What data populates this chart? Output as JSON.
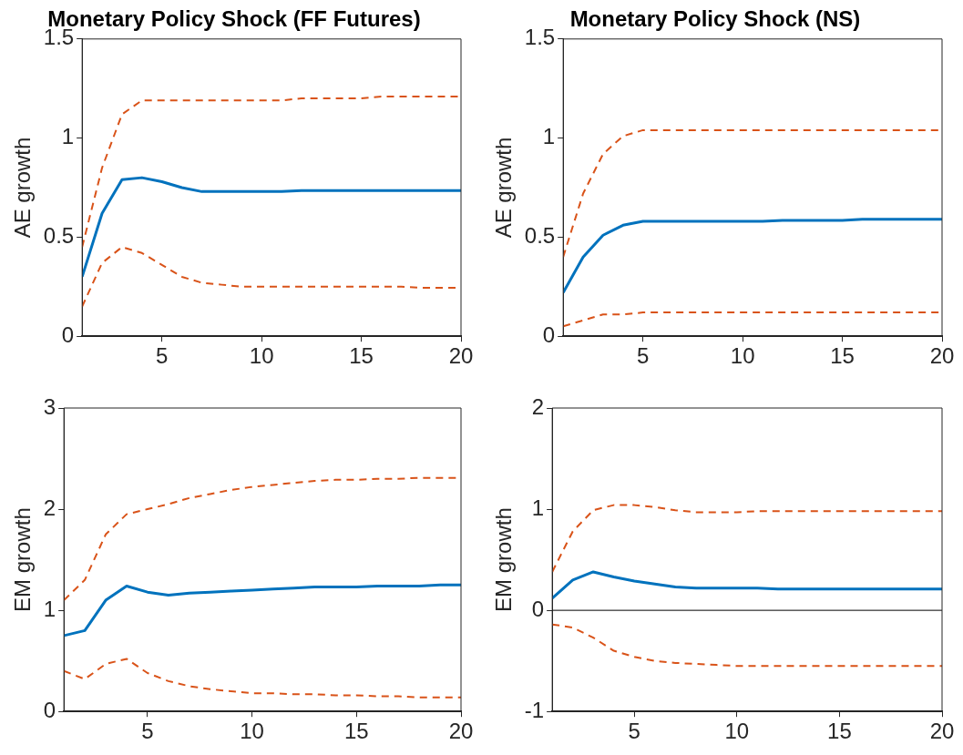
{
  "chart_data": [
    {
      "type": "line",
      "title": "Monetary Policy Shock (FF Futures)",
      "ylabel": "AE growth",
      "x": [
        1,
        2,
        3,
        4,
        5,
        6,
        7,
        8,
        9,
        10,
        11,
        12,
        13,
        14,
        15,
        16,
        17,
        18,
        19,
        20
      ],
      "xlim": [
        1,
        20
      ],
      "xticks": [
        5,
        10,
        15,
        20
      ],
      "ylim": [
        0,
        1.5
      ],
      "yticks": [
        0,
        0.5,
        1,
        1.5
      ],
      "grid": false,
      "legend": false,
      "series": [
        {
          "color": "#d95319",
          "line_style": "dashed",
          "values": [
            0.45,
            0.85,
            1.12,
            1.19,
            1.19,
            1.19,
            1.19,
            1.19,
            1.19,
            1.19,
            1.19,
            1.2,
            1.2,
            1.2,
            1.2,
            1.21,
            1.21,
            1.21,
            1.21,
            1.21
          ]
        },
        {
          "color": "#0072bd",
          "line_style": "solid",
          "values": [
            0.3,
            0.62,
            0.79,
            0.8,
            0.78,
            0.75,
            0.73,
            0.73,
            0.73,
            0.73,
            0.73,
            0.735,
            0.735,
            0.735,
            0.735,
            0.735,
            0.735,
            0.735,
            0.735,
            0.735
          ]
        },
        {
          "color": "#d95319",
          "line_style": "dashed",
          "values": [
            0.15,
            0.37,
            0.45,
            0.42,
            0.36,
            0.3,
            0.27,
            0.26,
            0.25,
            0.25,
            0.25,
            0.25,
            0.25,
            0.25,
            0.25,
            0.25,
            0.25,
            0.245,
            0.245,
            0.245
          ]
        }
      ]
    },
    {
      "type": "line",
      "title": "Monetary Policy Shock (NS)",
      "ylabel": "AE growth",
      "x": [
        1,
        2,
        3,
        4,
        5,
        6,
        7,
        8,
        9,
        10,
        11,
        12,
        13,
        14,
        15,
        16,
        17,
        18,
        19,
        20
      ],
      "xlim": [
        1,
        20
      ],
      "xticks": [
        5,
        10,
        15,
        20
      ],
      "ylim": [
        0,
        1.5
      ],
      "yticks": [
        0,
        0.5,
        1,
        1.5
      ],
      "grid": false,
      "legend": false,
      "series": [
        {
          "color": "#d95319",
          "line_style": "dashed",
          "values": [
            0.4,
            0.72,
            0.92,
            1.01,
            1.04,
            1.04,
            1.04,
            1.04,
            1.04,
            1.04,
            1.04,
            1.04,
            1.04,
            1.04,
            1.04,
            1.04,
            1.04,
            1.04,
            1.04,
            1.04
          ]
        },
        {
          "color": "#0072bd",
          "line_style": "solid",
          "values": [
            0.22,
            0.4,
            0.51,
            0.56,
            0.58,
            0.58,
            0.58,
            0.58,
            0.58,
            0.58,
            0.58,
            0.585,
            0.585,
            0.585,
            0.585,
            0.59,
            0.59,
            0.59,
            0.59,
            0.59
          ]
        },
        {
          "color": "#d95319",
          "line_style": "dashed",
          "values": [
            0.05,
            0.08,
            0.11,
            0.11,
            0.12,
            0.12,
            0.12,
            0.12,
            0.12,
            0.12,
            0.12,
            0.12,
            0.12,
            0.12,
            0.12,
            0.12,
            0.12,
            0.12,
            0.12,
            0.12
          ]
        }
      ]
    },
    {
      "type": "line",
      "ylabel": "EM growth",
      "x": [
        1,
        2,
        3,
        4,
        5,
        6,
        7,
        8,
        9,
        10,
        11,
        12,
        13,
        14,
        15,
        16,
        17,
        18,
        19,
        20
      ],
      "xlim": [
        1,
        20
      ],
      "xticks": [
        5,
        10,
        15,
        20
      ],
      "ylim": [
        0,
        3
      ],
      "yticks": [
        0,
        1,
        2,
        3
      ],
      "grid": false,
      "legend": false,
      "series": [
        {
          "color": "#d95319",
          "line_style": "dashed",
          "values": [
            1.1,
            1.3,
            1.75,
            1.95,
            2.0,
            2.05,
            2.11,
            2.15,
            2.19,
            2.22,
            2.24,
            2.26,
            2.28,
            2.29,
            2.29,
            2.3,
            2.3,
            2.31,
            2.31,
            2.31
          ]
        },
        {
          "color": "#0072bd",
          "line_style": "solid",
          "values": [
            0.75,
            0.8,
            1.1,
            1.24,
            1.18,
            1.15,
            1.17,
            1.18,
            1.19,
            1.2,
            1.21,
            1.22,
            1.23,
            1.23,
            1.23,
            1.24,
            1.24,
            1.24,
            1.25,
            1.25
          ]
        },
        {
          "color": "#d95319",
          "line_style": "dashed",
          "values": [
            0.4,
            0.32,
            0.47,
            0.52,
            0.38,
            0.3,
            0.25,
            0.22,
            0.2,
            0.18,
            0.18,
            0.17,
            0.17,
            0.16,
            0.16,
            0.15,
            0.15,
            0.14,
            0.14,
            0.14
          ]
        }
      ]
    },
    {
      "type": "line",
      "ylabel": "EM growth",
      "x": [
        1,
        2,
        3,
        4,
        5,
        6,
        7,
        8,
        9,
        10,
        11,
        12,
        13,
        14,
        15,
        16,
        17,
        18,
        19,
        20
      ],
      "xlim": [
        1,
        20
      ],
      "xticks": [
        5,
        10,
        15,
        20
      ],
      "ylim": [
        -1,
        2
      ],
      "yticks": [
        -1,
        0,
        1,
        2
      ],
      "grid": false,
      "legend": false,
      "ref_lines": [
        {
          "axis": "y",
          "value": 0,
          "color": "#000000"
        }
      ],
      "series": [
        {
          "color": "#d95319",
          "line_style": "dashed",
          "values": [
            0.38,
            0.78,
            0.99,
            1.04,
            1.04,
            1.02,
            0.99,
            0.97,
            0.97,
            0.97,
            0.98,
            0.98,
            0.98,
            0.98,
            0.98,
            0.98,
            0.98,
            0.98,
            0.98,
            0.98
          ]
        },
        {
          "color": "#0072bd",
          "line_style": "solid",
          "values": [
            0.12,
            0.3,
            0.38,
            0.33,
            0.29,
            0.26,
            0.23,
            0.22,
            0.22,
            0.22,
            0.22,
            0.21,
            0.21,
            0.21,
            0.21,
            0.21,
            0.21,
            0.21,
            0.21,
            0.21
          ]
        },
        {
          "color": "#d95319",
          "line_style": "dashed",
          "values": [
            -0.14,
            -0.17,
            -0.27,
            -0.4,
            -0.46,
            -0.5,
            -0.52,
            -0.53,
            -0.54,
            -0.55,
            -0.55,
            -0.55,
            -0.55,
            -0.55,
            -0.55,
            -0.55,
            -0.55,
            -0.55,
            -0.55,
            -0.55
          ]
        }
      ]
    }
  ]
}
